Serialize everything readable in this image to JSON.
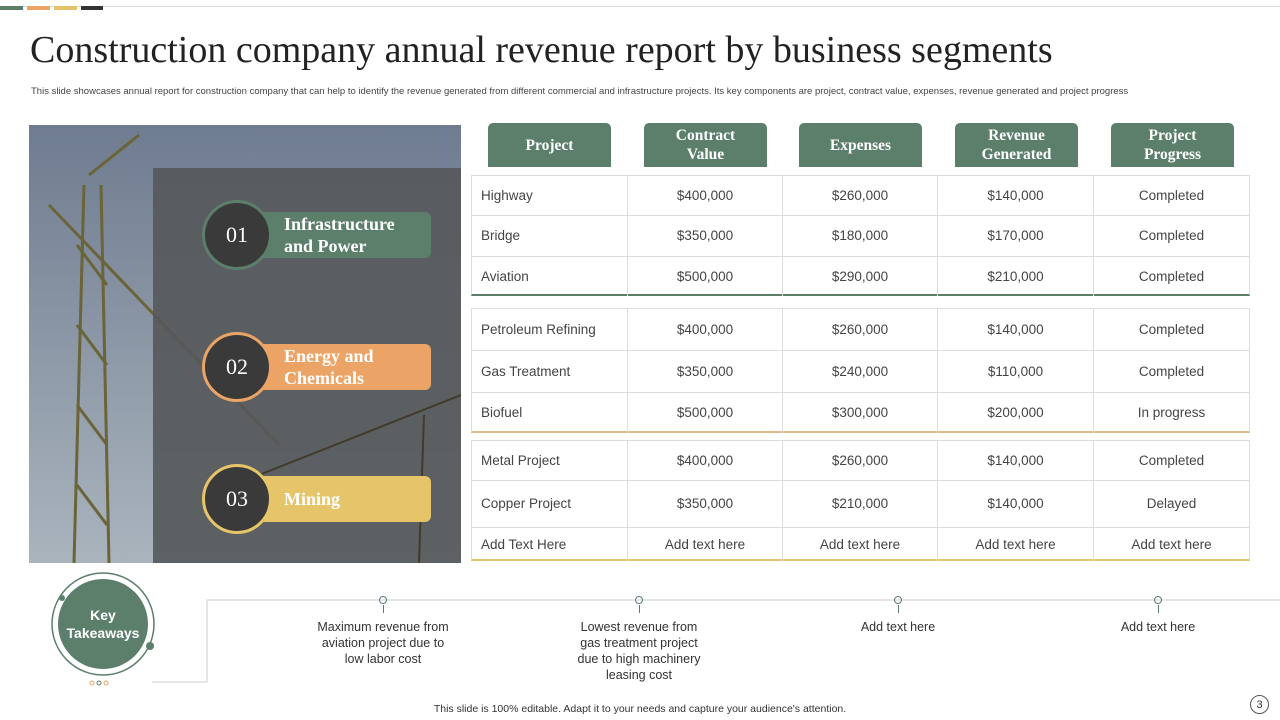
{
  "header": {
    "title": "Construction company annual revenue report by business segments",
    "subtitle": "This slide showcases annual report for construction company that can help to identify the revenue generated from different commercial and infrastructure projects. Its key components are project, contract value, expenses, revenue generated and project progress"
  },
  "segments": [
    {
      "number": "01",
      "label": "Infrastructure and Power"
    },
    {
      "number": "02",
      "label": "Energy and Chemicals"
    },
    {
      "number": "03",
      "label": "Mining"
    }
  ],
  "table": {
    "columns": [
      "Project",
      "Contract Value",
      "Expenses",
      "Revenue Generated",
      "Project Progress"
    ],
    "groups": [
      [
        [
          "Highway",
          "$400,000",
          "$260,000",
          "$140,000",
          "Completed"
        ],
        [
          "Bridge",
          "$350,000",
          "$180,000",
          "$170,000",
          "Completed"
        ],
        [
          "Aviation",
          "$500,000",
          "$290,000",
          "$210,000",
          "Completed"
        ]
      ],
      [
        [
          "Petroleum Refining",
          "$400,000",
          "$260,000",
          "$140,000",
          "Completed"
        ],
        [
          "Gas Treatment",
          "$350,000",
          "$240,000",
          "$110,000",
          "Completed"
        ],
        [
          "Biofuel",
          "$500,000",
          "$300,000",
          "$200,000",
          "In progress"
        ]
      ],
      [
        [
          "Metal Project",
          "$400,000",
          "$260,000",
          "$140,000",
          "Completed"
        ],
        [
          "Copper Project",
          "$350,000",
          "$210,000",
          "$140,000",
          "Delayed"
        ],
        [
          "Add Text Here",
          "Add text here",
          "Add text here",
          "Add text here",
          "Add text here"
        ]
      ]
    ]
  },
  "takeaways": {
    "title": "Key Takeaways",
    "items": [
      "Maximum revenue from aviation project due to low labor cost",
      "Lowest revenue from gas treatment project due to high machinery leasing cost",
      "Add text here",
      "Add text here"
    ]
  },
  "footer": "This slide is 100% editable. Adapt it to your needs and capture your audience's attention.",
  "page_number": "3"
}
